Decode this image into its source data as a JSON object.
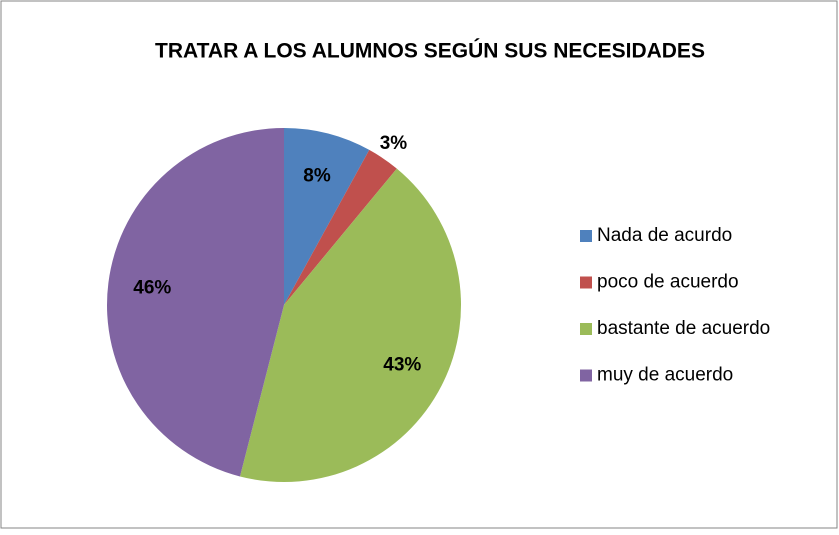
{
  "chart_data": {
    "type": "pie",
    "title": "TRATAR A LOS ALUMNOS SEGÚN SUS NECESIDADES",
    "categories": [
      "Nada de acurdo",
      "poco de acuerdo",
      "bastante de acuerdo",
      "muy de acuerdo"
    ],
    "values": [
      8,
      3,
      43,
      46
    ],
    "value_labels": [
      "8%",
      "3%",
      "43%",
      "46%"
    ],
    "colors": [
      "#4f81bd",
      "#c0504d",
      "#9bbb59",
      "#8064a2"
    ],
    "legend": "right"
  }
}
